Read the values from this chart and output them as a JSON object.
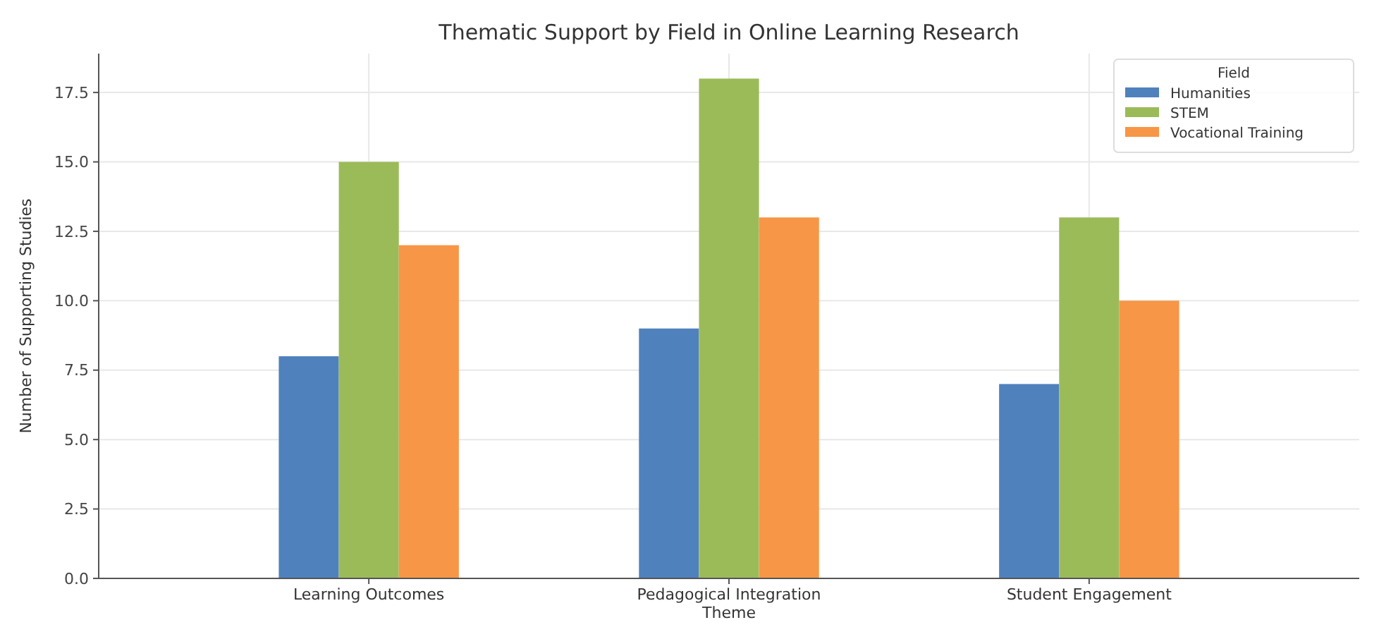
{
  "chart_data": {
    "type": "bar",
    "title": "Thematic Support by Field in Online Learning Research",
    "xlabel": "Theme",
    "ylabel": "Number of Supporting Studies",
    "legend_title": "Field",
    "categories": [
      "Learning Outcomes",
      "Pedagogical Integration",
      "Student Engagement"
    ],
    "series": [
      {
        "name": "Humanities",
        "color": "#4f81bd",
        "values": [
          8,
          9,
          7
        ]
      },
      {
        "name": "STEM",
        "color": "#9bbb59",
        "values": [
          15,
          18,
          13
        ]
      },
      {
        "name": "Vocational Training",
        "color": "#f79646",
        "values": [
          12,
          13,
          10
        ]
      }
    ],
    "ylim": [
      0,
      18.9
    ],
    "yticks": [
      {
        "value": 0,
        "label": "0.0"
      },
      {
        "value": 2.5,
        "label": "2.5"
      },
      {
        "value": 5,
        "label": "5.0"
      },
      {
        "value": 7.5,
        "label": "7.5"
      },
      {
        "value": 10,
        "label": "10.0"
      },
      {
        "value": 12.5,
        "label": "12.5"
      },
      {
        "value": 15,
        "label": "15.0"
      },
      {
        "value": 17.5,
        "label": "17.5"
      }
    ],
    "grid": true,
    "legend": "top right"
  }
}
